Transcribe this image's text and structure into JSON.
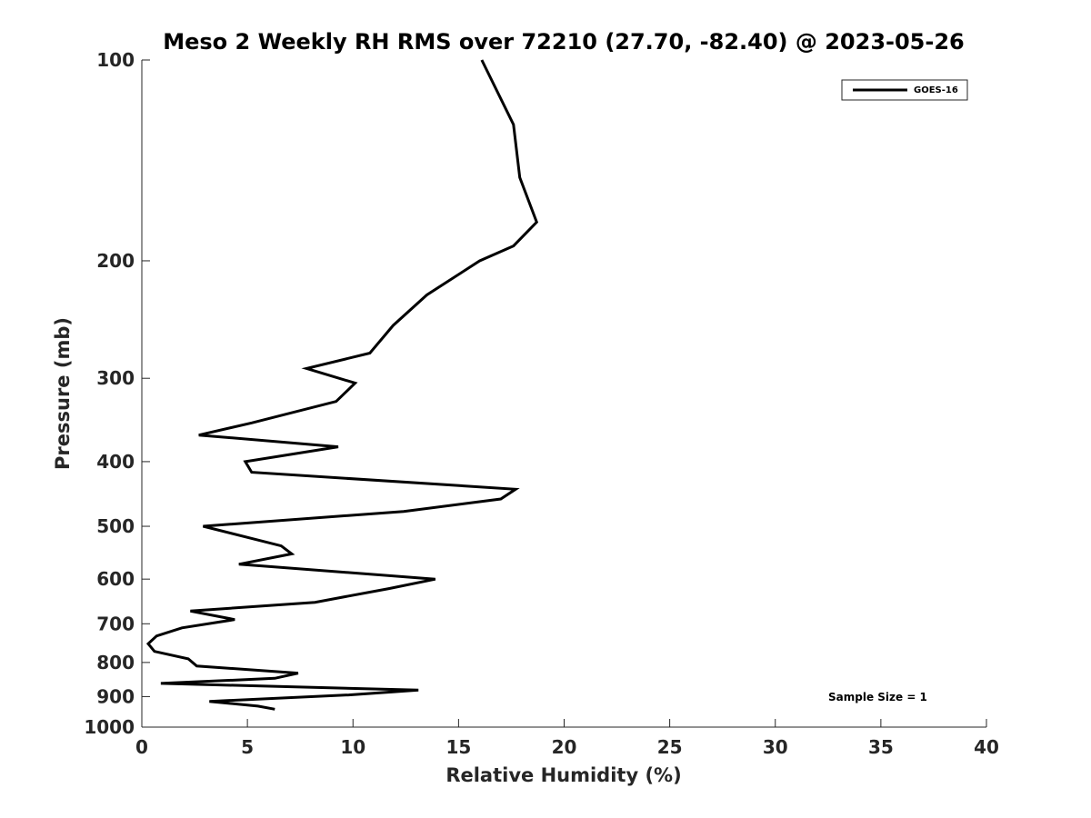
{
  "chart_data": {
    "type": "line",
    "title": "Meso 2 Weekly RH RMS over 72210 (27.70, -82.40) @ 2023-05-26",
    "xlabel": "Relative Humidity (%)",
    "ylabel": "Pressure (mb)",
    "xlim": [
      0,
      40
    ],
    "ylim": [
      100,
      1000
    ],
    "y_scale": "log",
    "y_reversed": true,
    "x_ticks": [
      0,
      5,
      10,
      15,
      20,
      25,
      30,
      35,
      40
    ],
    "y_ticks": [
      100,
      200,
      300,
      400,
      500,
      600,
      700,
      800,
      900,
      1000
    ],
    "grid": false,
    "legend": {
      "position": "top-right",
      "entries": [
        "GOES-16"
      ]
    },
    "annotations": [
      "Sample Size = 1"
    ],
    "series": [
      {
        "name": "GOES-16",
        "color": "#000000",
        "points": [
          [
            16.1,
            100
          ],
          [
            17.6,
            125
          ],
          [
            17.9,
            150
          ],
          [
            18.7,
            175
          ],
          [
            17.6,
            190
          ],
          [
            16.0,
            200
          ],
          [
            13.5,
            225
          ],
          [
            11.9,
            250
          ],
          [
            10.8,
            275
          ],
          [
            7.8,
            290
          ],
          [
            10.1,
            305
          ],
          [
            9.2,
            325
          ],
          [
            5.2,
            350
          ],
          [
            2.7,
            365
          ],
          [
            9.3,
            380
          ],
          [
            4.9,
            400
          ],
          [
            5.2,
            415
          ],
          [
            17.7,
            440
          ],
          [
            17.0,
            455
          ],
          [
            12.4,
            475
          ],
          [
            2.9,
            500
          ],
          [
            6.6,
            535
          ],
          [
            7.1,
            550
          ],
          [
            4.6,
            570
          ],
          [
            13.9,
            600
          ],
          [
            11.7,
            620
          ],
          [
            8.2,
            650
          ],
          [
            2.3,
            670
          ],
          [
            4.4,
            690
          ],
          [
            1.9,
            710
          ],
          [
            0.7,
            730
          ],
          [
            0.3,
            750
          ],
          [
            0.6,
            770
          ],
          [
            2.2,
            790
          ],
          [
            2.6,
            810
          ],
          [
            7.4,
            830
          ],
          [
            6.3,
            845
          ],
          [
            0.9,
            860
          ],
          [
            13.1,
            880
          ],
          [
            9.8,
            895
          ],
          [
            3.2,
            915
          ],
          [
            5.5,
            930
          ],
          [
            6.3,
            940
          ]
        ]
      }
    ]
  }
}
